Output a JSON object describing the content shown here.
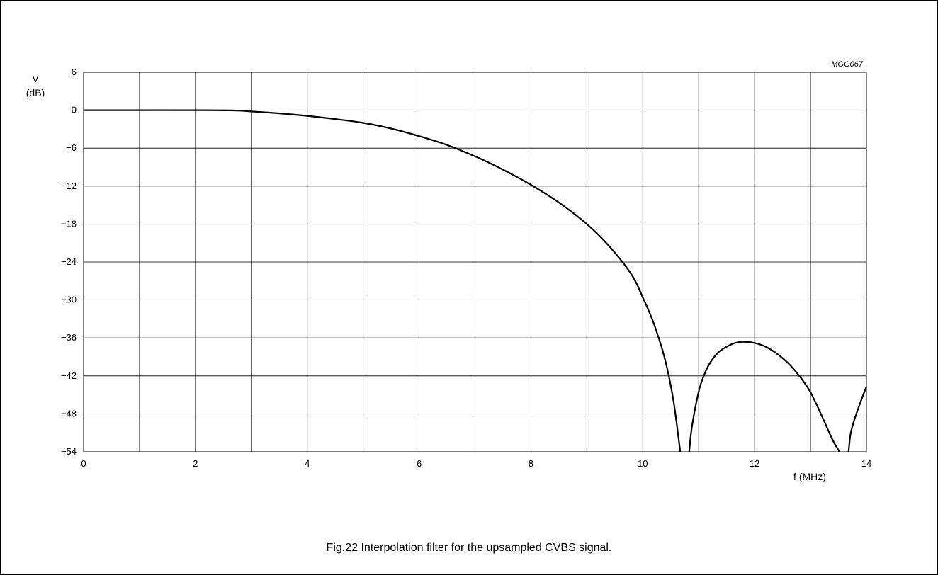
{
  "figure": {
    "reference": "MGG067",
    "caption": "Fig.22  Interpolation filter for the upsampled CVBS signal."
  },
  "chart_data": {
    "type": "line",
    "title": "",
    "xlabel": "f (MHz)",
    "ylabel_line1": "V",
    "ylabel_line2": "(dB)",
    "xlim": [
      0,
      14
    ],
    "ylim": [
      -54,
      6
    ],
    "grid": true,
    "x_ticks": [
      0,
      1,
      2,
      3,
      4,
      5,
      6,
      7,
      8,
      9,
      10,
      11,
      12,
      13,
      14
    ],
    "x_tick_labels": [
      "0",
      "2",
      "4",
      "6",
      "8",
      "10",
      "12",
      "14"
    ],
    "x_tick_label_values": [
      0,
      2,
      4,
      6,
      8,
      10,
      12,
      14
    ],
    "y_ticks": [
      6,
      0,
      -6,
      -12,
      -18,
      -24,
      -30,
      -36,
      -42,
      -48,
      -54
    ],
    "y_tick_labels": [
      "6",
      "0",
      "−6",
      "−12",
      "−18",
      "−24",
      "−30",
      "−36",
      "−42",
      "−48",
      "−54"
    ],
    "line_color": "#000000",
    "series": [
      {
        "segments": [
          {
            "x": [
              0,
              1,
              2,
              2.7,
              3.0,
              3.5,
              4.0,
              4.5,
              5.0,
              5.5,
              6.0,
              6.5,
              7.0,
              7.5,
              8.0,
              8.5,
              9.0,
              9.4,
              9.8,
              10.0,
              10.2,
              10.4,
              10.55,
              10.67
            ],
            "y": [
              0,
              0,
              0,
              -0.05,
              -0.2,
              -0.5,
              -0.9,
              -1.4,
              -2.0,
              -2.9,
              -4.1,
              -5.5,
              -7.3,
              -9.4,
              -11.8,
              -14.6,
              -18.0,
              -21.5,
              -26.0,
              -29.6,
              -33.8,
              -39.5,
              -46.0,
              -54
            ]
          },
          {
            "x": [
              10.83,
              10.88,
              11.0,
              11.1,
              11.2,
              11.35,
              11.5,
              11.65,
              11.8,
              12.0,
              12.2,
              12.4,
              12.6,
              12.8,
              13.0,
              13.2,
              13.4,
              13.52
            ],
            "y": [
              -54,
              -50.0,
              -44.5,
              -41.8,
              -40.0,
              -38.3,
              -37.4,
              -36.8,
              -36.6,
              -36.8,
              -37.4,
              -38.5,
              -40.0,
              -42.0,
              -44.6,
              -48.3,
              -52.2,
              -54
            ]
          },
          {
            "x": [
              13.68,
              13.72,
              13.8,
              13.9,
              14.0
            ],
            "y": [
              -54,
              -51.0,
              -48.5,
              -46.0,
              -43.7
            ]
          }
        ]
      }
    ]
  }
}
